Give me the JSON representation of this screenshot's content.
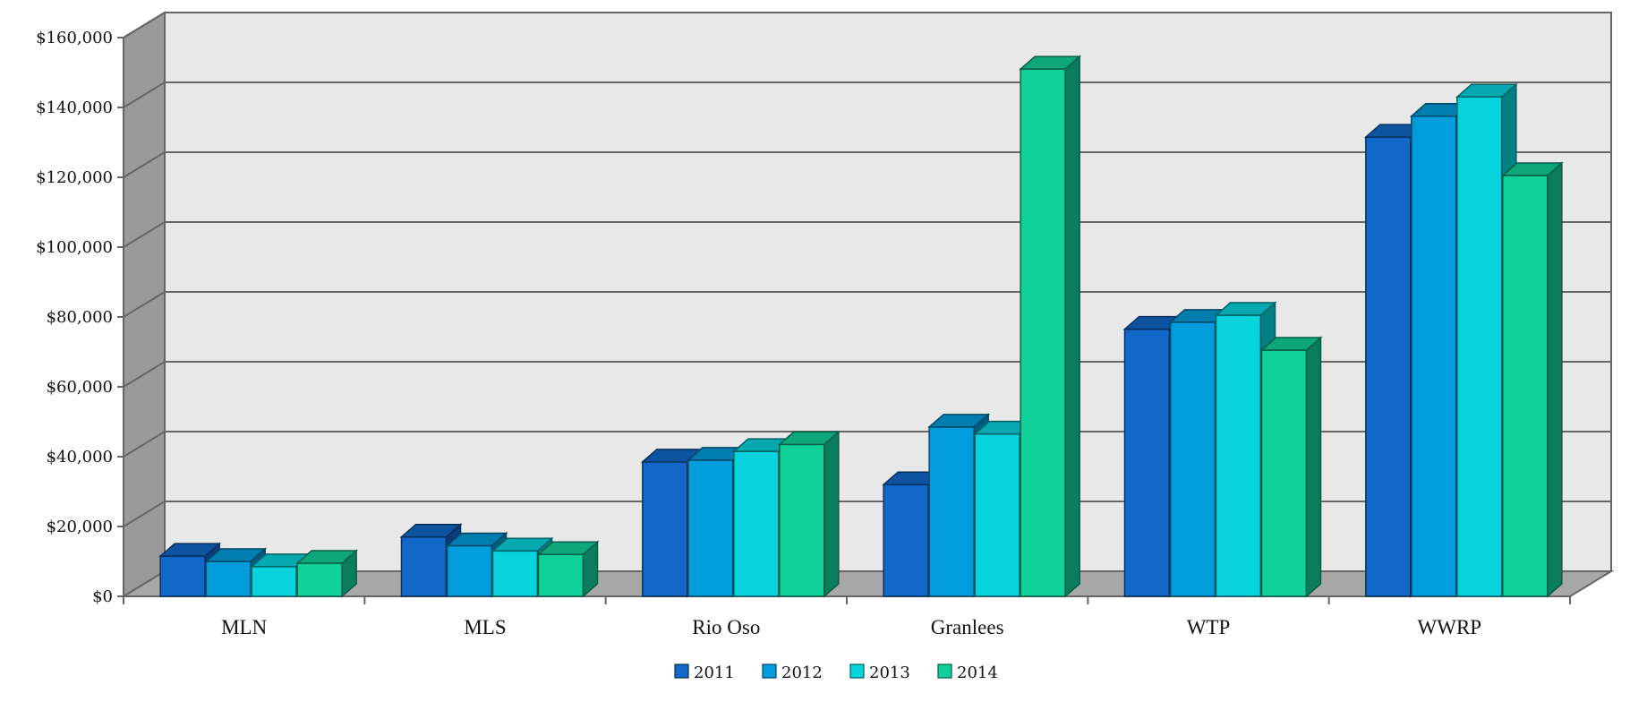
{
  "chart_data": {
    "type": "bar",
    "title": "",
    "xlabel": "",
    "ylabel": "",
    "categories": [
      "MLN",
      "MLS",
      "Rio Oso",
      "Granlees",
      "WTP",
      "WWRP"
    ],
    "series": [
      {
        "name": "2011",
        "values": [
          11500,
          17000,
          38500,
          32000,
          76500,
          131500
        ],
        "color": "#1168c8"
      },
      {
        "name": "2012",
        "values": [
          10000,
          14500,
          39000,
          48500,
          78500,
          137500
        ],
        "color": "#009cdb"
      },
      {
        "name": "2013",
        "values": [
          8500,
          13000,
          41500,
          46500,
          80500,
          143000
        ],
        "color": "#07d3dc"
      },
      {
        "name": "2014",
        "values": [
          9500,
          12000,
          43500,
          151000,
          70500,
          120500
        ],
        "color": "#11d19a"
      }
    ],
    "yticks": [
      "$0",
      "$20,000",
      "$40,000",
      "$60,000",
      "$80,000",
      "$100,000",
      "$120,000",
      "$140,000",
      "$160,000"
    ],
    "ylim": [
      0,
      160000
    ],
    "grid": true,
    "legend": "bottom",
    "colors": {
      "wall": "#e8e8e8",
      "side_wall": "#9a9a9a",
      "floor": "#a8a8a8",
      "gridline": "#666666"
    }
  }
}
